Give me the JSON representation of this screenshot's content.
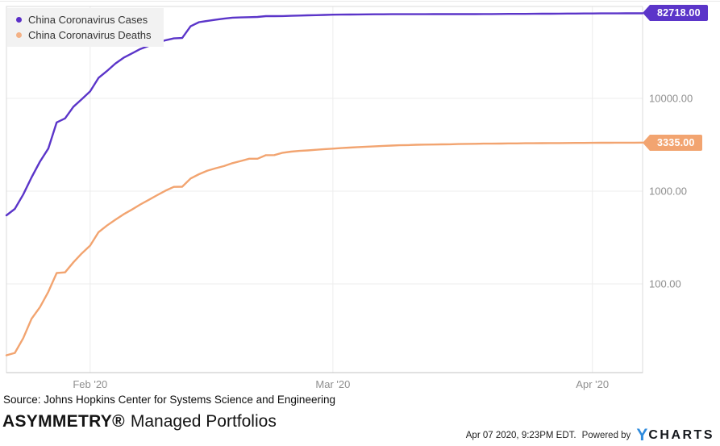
{
  "footer": {
    "source": "Source: Johns Hopkins Center for Systems Science and Engineering",
    "brand_bold": "ASYMMETRY®",
    "brand_rest": "Managed Portfolios",
    "timestamp": "Apr 07 2020, 9:23PM EDT.",
    "powered_by": "Powered by",
    "logo_y": "Y",
    "logo_rest": "CHARTS"
  },
  "chart_data": {
    "type": "line",
    "title": "",
    "y_scale": "log",
    "grid": true,
    "legend_position": "top-left",
    "start_date": "Jan 22 2020",
    "end_date": "Apr 07 2020",
    "xlim_days": [
      0,
      76
    ],
    "ylim": [
      11.05,
      98000
    ],
    "x_ticks": [
      {
        "label": "Feb '20",
        "day": 10
      },
      {
        "label": "Mar '20",
        "day": 39
      },
      {
        "label": "Apr '20",
        "day": 70
      }
    ],
    "y_ticks": [
      {
        "label": "10000.00",
        "value": 10000
      },
      {
        "label": "1000.00",
        "value": 1000
      },
      {
        "label": "100.00",
        "value": 100
      }
    ],
    "series": [
      {
        "name": "China Coronavirus Cases",
        "color": "#5B35C9",
        "dot_color": "#5B2FC8",
        "last_label": "82718.00",
        "values": [
          548,
          643,
          920,
          1406,
          2075,
          2877,
          5509,
          6087,
          8141,
          9802,
          11891,
          16630,
          19716,
          23707,
          27440,
          30587,
          34110,
          36814,
          39829,
          42354,
          44386,
          44759,
          59895,
          66358,
          68413,
          70513,
          72434,
          74211,
          74619,
          75077,
          75550,
          77001,
          77022,
          77241,
          77754,
          78166,
          78600,
          78928,
          79356,
          79932,
          80136,
          80261,
          80386,
          80537,
          80690,
          80770,
          80823,
          80860,
          80887,
          80921,
          80932,
          80945,
          80977,
          81003,
          81033,
          81058,
          81102,
          81156,
          81250,
          81305,
          81435,
          81498,
          81591,
          81661,
          81782,
          81897,
          81999,
          82122,
          82198,
          82279,
          82361,
          82432,
          82511,
          82543,
          82602,
          82665,
          82718
        ]
      },
      {
        "name": "China Coronavirus Deaths",
        "color": "#F2A470",
        "dot_color": "#F3B186",
        "last_label": "3335.00",
        "values": [
          17,
          18,
          26,
          42,
          56,
          82,
          131,
          133,
          171,
          213,
          259,
          361,
          425,
          491,
          563,
          633,
          718,
          805,
          905,
          1012,
          1112,
          1117,
          1369,
          1521,
          1663,
          1766,
          1864,
          2003,
          2116,
          2238,
          2238,
          2443,
          2445,
          2595,
          2665,
          2717,
          2746,
          2790,
          2837,
          2872,
          2914,
          2947,
          2983,
          3015,
          3044,
          3072,
          3100,
          3123,
          3139,
          3161,
          3172,
          3180,
          3193,
          3203,
          3217,
          3230,
          3241,
          3249,
          3253,
          3259,
          3274,
          3274,
          3281,
          3285,
          3291,
          3296,
          3299,
          3304,
          3308,
          3309,
          3316,
          3322,
          3326,
          3330,
          3333,
          3333,
          3335
        ]
      }
    ]
  }
}
